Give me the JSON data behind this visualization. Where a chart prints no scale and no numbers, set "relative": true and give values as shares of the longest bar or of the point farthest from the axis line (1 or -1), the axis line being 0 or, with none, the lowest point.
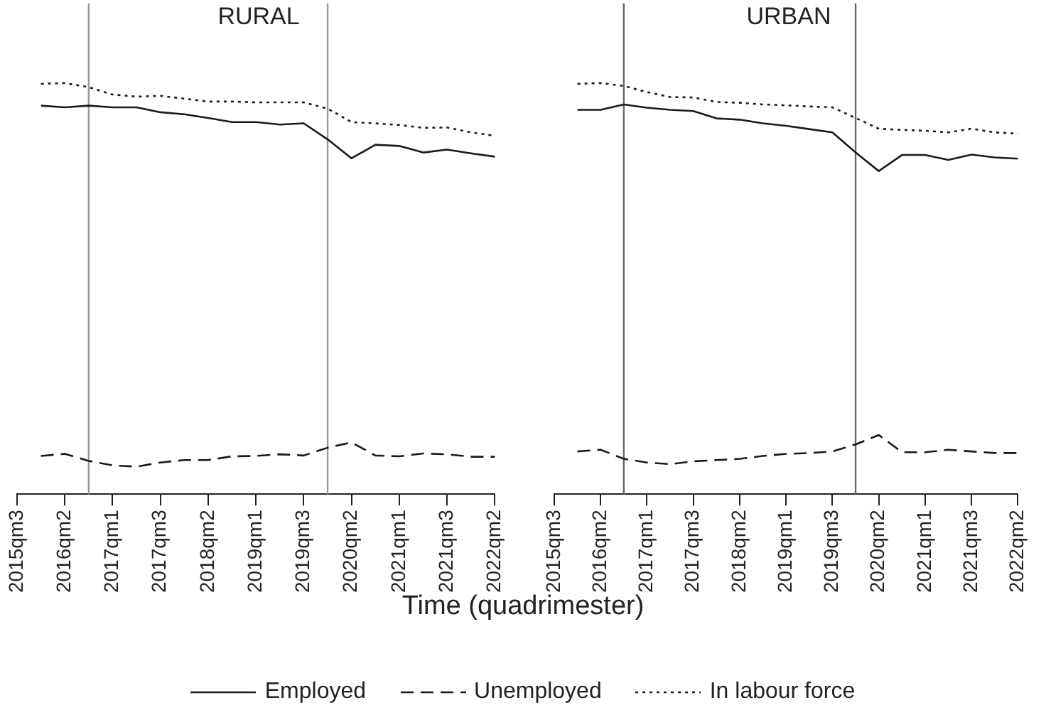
{
  "chart_data": [
    {
      "type": "line",
      "title": "RURAL",
      "xlabel": "Time (quadrimester)",
      "relative": true,
      "legend": "bottom",
      "categories": [
        "2015qm3",
        null,
        "2016qm2",
        null,
        "2017qm1",
        null,
        "2017qm3",
        null,
        "2018qm2",
        null,
        "2019qm1",
        null,
        "2019qm3",
        null,
        "2020qm2",
        null,
        "2021qm1",
        null,
        "2021qm3",
        null,
        "2022qm2"
      ],
      "series": [
        {
          "name": "Employed",
          "color": "#1a1a1a",
          "line_style": "solid",
          "values": [
            null,
            0.945,
            0.941,
            0.945,
            0.941,
            0.941,
            0.929,
            0.924,
            0.915,
            0.905,
            0.905,
            0.899,
            0.902,
            0.863,
            0.817,
            0.85,
            0.847,
            0.831,
            0.838,
            0.829,
            0.821
          ]
        },
        {
          "name": "Unemployed",
          "color": "#1a1a1a",
          "line_style": "dashed",
          "values": [
            null,
            0.093,
            0.098,
            0.081,
            0.07,
            0.067,
            0.077,
            0.083,
            0.083,
            0.092,
            0.093,
            0.097,
            0.094,
            0.113,
            0.126,
            0.094,
            0.092,
            0.099,
            0.097,
            0.091,
            0.091
          ]
        },
        {
          "name": "In labour force",
          "color": "#1a1a1a",
          "line_style": "dotted",
          "values": [
            null,
            0.998,
            1,
            0.99,
            0.972,
            0.967,
            0.969,
            0.962,
            0.955,
            0.955,
            0.953,
            0.953,
            0.953,
            0.938,
            0.905,
            0.902,
            0.898,
            0.891,
            0.892,
            0.88,
            0.872
          ]
        }
      ]
    },
    {
      "type": "line",
      "title": "URBAN",
      "relative": true,
      "categories": [
        "2015qm3",
        null,
        "2016qm2",
        null,
        "2017qm1",
        null,
        "2017qm3",
        null,
        "2018qm2",
        null,
        "2019qm1",
        null,
        "2019qm3",
        null,
        "2020qm2",
        null,
        "2021qm1",
        null,
        "2021qm3",
        null,
        "2022qm2"
      ],
      "series": [
        {
          "color": "#1a1a1a",
          "line_style": "solid",
          "values": [
            null,
            0.935,
            0.935,
            0.948,
            0.94,
            0.935,
            0.932,
            0.914,
            0.911,
            0.902,
            0.896,
            0.888,
            0.88,
            0.831,
            0.786,
            0.825,
            0.825,
            0.813,
            0.826,
            0.819,
            0.816
          ]
        },
        {
          "color": "#1a1a1a",
          "line_style": "dashed",
          "values": [
            null,
            0.104,
            0.108,
            0.086,
            0.077,
            0.073,
            0.08,
            0.083,
            0.086,
            0.093,
            0.098,
            0.1,
            0.104,
            0.121,
            0.144,
            0.102,
            0.102,
            0.108,
            0.104,
            0.1,
            0.1
          ]
        },
        {
          "color": "#1a1a1a",
          "line_style": "dotted",
          "values": [
            null,
            0.998,
            1,
            0.993,
            0.978,
            0.966,
            0.965,
            0.954,
            0.952,
            0.948,
            0.946,
            0.943,
            0.941,
            0.915,
            0.889,
            0.886,
            0.884,
            0.88,
            0.889,
            0.88,
            0.877
          ]
        }
      ]
    }
  ]
}
